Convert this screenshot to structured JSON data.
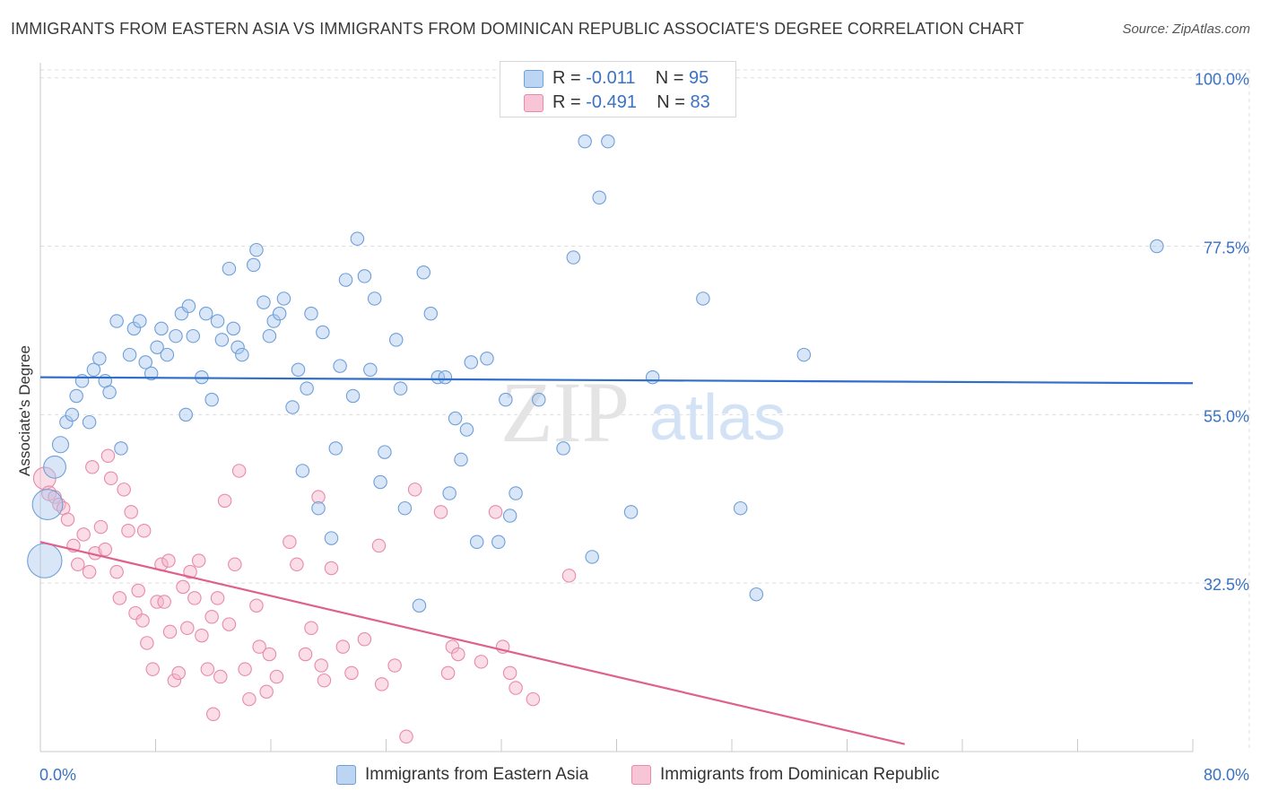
{
  "header": {
    "title": "IMMIGRANTS FROM EASTERN ASIA VS IMMIGRANTS FROM DOMINICAN REPUBLIC ASSOCIATE'S DEGREE CORRELATION CHART",
    "source": "Source: ZipAtlas.com"
  },
  "legend": {
    "row1": {
      "r_label": "R =",
      "r_value": "-0.011",
      "n_label": "N =",
      "n_value": "95"
    },
    "row2": {
      "r_label": "R =",
      "r_value": "-0.491",
      "n_label": "N =",
      "n_value": "83"
    }
  },
  "bottom_legend": {
    "series1": "Immigrants from Eastern Asia",
    "series2": "Immigrants from Dominican Republic"
  },
  "watermark": {
    "zip": "ZIP",
    "atlas": "atlas"
  },
  "colors": {
    "blue_fill": "#a9c8f0",
    "blue_stroke": "#6f9fd8",
    "blue_line": "#2f6fca",
    "pink_fill": "#f4b3c8",
    "pink_stroke": "#e88aa8",
    "pink_line": "#e0608c",
    "axis_label": "#3a72c4",
    "grid": "#dddddd"
  },
  "chart_data": {
    "type": "scatter",
    "title": "IMMIGRANTS FROM EASTERN ASIA VS IMMIGRANTS FROM DOMINICAN REPUBLIC ASSOCIATE'S DEGREE CORRELATION CHART",
    "xlabel": "",
    "ylabel": "Associate's Degree",
    "xlim": [
      0,
      80
    ],
    "ylim": [
      10,
      102
    ],
    "x_tick_labels": [
      "0.0%",
      "80.0%"
    ],
    "y_ticks": [
      32.5,
      55.0,
      77.5,
      100.0
    ],
    "y_tick_labels": [
      "32.5%",
      "55.0%",
      "77.5%",
      "100.0%"
    ],
    "grid": true,
    "legend_position": "top-center",
    "series": [
      {
        "name": "Immigrants from Eastern Asia",
        "R": -0.011,
        "N": 95,
        "trend": {
          "x": [
            0,
            80
          ],
          "y": [
            60.0,
            59.2
          ]
        },
        "points": [
          [
            0.3,
            35.5,
            1.7
          ],
          [
            0.5,
            43.0,
            1.5
          ],
          [
            1.0,
            48.0,
            1.1
          ],
          [
            1.4,
            51.0,
            1.0
          ],
          [
            1.8,
            54.0,
            0.8
          ],
          [
            2.2,
            55.0,
            0.8
          ],
          [
            2.5,
            57.5,
            0.8
          ],
          [
            2.9,
            59.5,
            0.8
          ],
          [
            3.4,
            54.0,
            0.8
          ],
          [
            3.7,
            61.0,
            0.8
          ],
          [
            4.1,
            62.5,
            0.8
          ],
          [
            4.5,
            59.5,
            0.8
          ],
          [
            4.8,
            58.0,
            0.8
          ],
          [
            5.3,
            67.5,
            0.8
          ],
          [
            5.6,
            50.5,
            0.8
          ],
          [
            6.2,
            63.0,
            0.8
          ],
          [
            6.5,
            66.5,
            0.8
          ],
          [
            6.9,
            67.5,
            0.8
          ],
          [
            7.3,
            62.0,
            0.8
          ],
          [
            7.7,
            60.5,
            0.8
          ],
          [
            8.1,
            64.0,
            0.8
          ],
          [
            8.4,
            66.5,
            0.8
          ],
          [
            8.8,
            63.0,
            0.8
          ],
          [
            9.4,
            65.5,
            0.8
          ],
          [
            9.8,
            68.5,
            0.8
          ],
          [
            10.1,
            55.0,
            0.8
          ],
          [
            10.3,
            69.5,
            0.8
          ],
          [
            10.6,
            65.5,
            0.8
          ],
          [
            11.2,
            60.0,
            0.8
          ],
          [
            11.5,
            68.5,
            0.8
          ],
          [
            11.9,
            57.0,
            0.8
          ],
          [
            12.3,
            67.5,
            0.8
          ],
          [
            12.6,
            65.0,
            0.8
          ],
          [
            13.1,
            74.5,
            0.8
          ],
          [
            13.4,
            66.5,
            0.8
          ],
          [
            13.7,
            64.0,
            0.8
          ],
          [
            14.0,
            63.0,
            0.8
          ],
          [
            14.8,
            75.0,
            0.8
          ],
          [
            15.0,
            77.0,
            0.8
          ],
          [
            15.5,
            70.0,
            0.8
          ],
          [
            15.9,
            65.5,
            0.8
          ],
          [
            16.2,
            67.5,
            0.8
          ],
          [
            16.6,
            68.5,
            0.8
          ],
          [
            16.9,
            70.5,
            0.8
          ],
          [
            17.5,
            56.0,
            0.8
          ],
          [
            17.9,
            61.0,
            0.8
          ],
          [
            18.2,
            47.5,
            0.8
          ],
          [
            18.5,
            58.5,
            0.8
          ],
          [
            18.8,
            68.5,
            0.8
          ],
          [
            19.3,
            42.5,
            0.8
          ],
          [
            19.6,
            66.0,
            0.8
          ],
          [
            20.2,
            38.5,
            0.8
          ],
          [
            20.5,
            50.5,
            0.8
          ],
          [
            20.8,
            61.5,
            0.8
          ],
          [
            21.2,
            73.0,
            0.8
          ],
          [
            21.7,
            57.5,
            0.8
          ],
          [
            22.0,
            78.5,
            0.8
          ],
          [
            22.5,
            73.5,
            0.8
          ],
          [
            22.9,
            61.0,
            0.8
          ],
          [
            23.2,
            70.5,
            0.8
          ],
          [
            23.6,
            46.0,
            0.8
          ],
          [
            23.9,
            50.0,
            0.8
          ],
          [
            24.7,
            65.0,
            0.8
          ],
          [
            25.0,
            58.5,
            0.8
          ],
          [
            25.3,
            42.5,
            0.8
          ],
          [
            26.3,
            29.5,
            0.8
          ],
          [
            26.6,
            74.0,
            0.8
          ],
          [
            27.1,
            68.5,
            0.8
          ],
          [
            27.6,
            60.0,
            0.8
          ],
          [
            28.1,
            60.0,
            0.8
          ],
          [
            28.4,
            44.5,
            0.8
          ],
          [
            28.8,
            54.5,
            0.8
          ],
          [
            29.2,
            49.0,
            0.8
          ],
          [
            29.6,
            53.0,
            0.8
          ],
          [
            29.9,
            62.0,
            0.8
          ],
          [
            30.3,
            38.0,
            0.8
          ],
          [
            31.0,
            62.5,
            0.8
          ],
          [
            31.8,
            38.0,
            0.8
          ],
          [
            32.3,
            57.0,
            0.8
          ],
          [
            32.6,
            41.5,
            0.8
          ],
          [
            33.0,
            44.5,
            0.8
          ],
          [
            34.6,
            57.0,
            0.8
          ],
          [
            36.3,
            50.5,
            0.8
          ],
          [
            37.0,
            76.0,
            0.8
          ],
          [
            37.8,
            91.5,
            0.8
          ],
          [
            38.3,
            36.0,
            0.8
          ],
          [
            38.8,
            84.0,
            0.8
          ],
          [
            39.4,
            91.5,
            0.8
          ],
          [
            41.0,
            42.0,
            0.8
          ],
          [
            42.5,
            60.0,
            0.8
          ],
          [
            46.0,
            70.5,
            0.8
          ],
          [
            48.6,
            42.5,
            0.8
          ],
          [
            49.7,
            31.0,
            0.8
          ],
          [
            53.0,
            63.0,
            0.8
          ],
          [
            77.5,
            77.5,
            0.8
          ]
        ]
      },
      {
        "name": "Immigrants from Dominican Republic",
        "R": -0.491,
        "N": 83,
        "trend": {
          "x": [
            0,
            60
          ],
          "y": [
            38.0,
            11.0
          ]
        },
        "points": [
          [
            0.3,
            46.5,
            1.1
          ],
          [
            0.6,
            44.5,
            0.9
          ],
          [
            1.0,
            44.0,
            0.8
          ],
          [
            1.3,
            43.0,
            0.8
          ],
          [
            1.6,
            42.5,
            0.8
          ],
          [
            1.9,
            41.0,
            0.8
          ],
          [
            2.3,
            37.5,
            0.8
          ],
          [
            2.6,
            35.0,
            0.8
          ],
          [
            3.0,
            39.0,
            0.8
          ],
          [
            3.4,
            34.0,
            0.8
          ],
          [
            3.6,
            48.0,
            0.8
          ],
          [
            3.8,
            36.5,
            0.8
          ],
          [
            4.2,
            40.0,
            0.8
          ],
          [
            4.5,
            37.0,
            0.8
          ],
          [
            4.7,
            49.5,
            0.8
          ],
          [
            4.9,
            46.5,
            0.8
          ],
          [
            5.3,
            34.0,
            0.8
          ],
          [
            5.5,
            30.5,
            0.8
          ],
          [
            5.8,
            45.0,
            0.8
          ],
          [
            6.1,
            39.5,
            0.8
          ],
          [
            6.3,
            42.0,
            0.8
          ],
          [
            6.6,
            28.5,
            0.8
          ],
          [
            6.8,
            31.5,
            0.8
          ],
          [
            7.2,
            39.5,
            0.8
          ],
          [
            7.4,
            24.5,
            0.8
          ],
          [
            7.8,
            21.0,
            0.8
          ],
          [
            8.1,
            30.0,
            0.8
          ],
          [
            8.4,
            35.0,
            0.8
          ],
          [
            8.6,
            30.0,
            0.8
          ],
          [
            8.9,
            35.5,
            0.8
          ],
          [
            9.3,
            19.5,
            0.8
          ],
          [
            9.6,
            20.5,
            0.8
          ],
          [
            9.9,
            32.0,
            0.8
          ],
          [
            10.2,
            26.5,
            0.8
          ],
          [
            10.4,
            34.0,
            0.8
          ],
          [
            10.7,
            30.5,
            0.8
          ],
          [
            11.0,
            35.5,
            0.8
          ],
          [
            11.2,
            25.5,
            0.8
          ],
          [
            11.6,
            21.0,
            0.8
          ],
          [
            11.9,
            28.0,
            0.8
          ],
          [
            12.3,
            30.5,
            0.8
          ],
          [
            12.5,
            20.0,
            0.8
          ],
          [
            12.8,
            43.5,
            0.8
          ],
          [
            13.1,
            27.0,
            0.8
          ],
          [
            13.5,
            35.0,
            0.8
          ],
          [
            13.8,
            47.5,
            0.8
          ],
          [
            14.2,
            21.0,
            0.8
          ],
          [
            14.5,
            17.0,
            0.8
          ],
          [
            15.0,
            29.5,
            0.8
          ],
          [
            15.2,
            24.0,
            0.8
          ],
          [
            15.9,
            23.0,
            0.8
          ],
          [
            16.4,
            20.0,
            0.8
          ],
          [
            17.3,
            38.0,
            0.8
          ],
          [
            17.8,
            35.0,
            0.8
          ],
          [
            18.4,
            23.0,
            0.8
          ],
          [
            18.8,
            26.5,
            0.8
          ],
          [
            19.3,
            44.0,
            0.8
          ],
          [
            19.7,
            19.5,
            0.8
          ],
          [
            20.2,
            34.5,
            0.8
          ],
          [
            21.0,
            24.0,
            0.8
          ],
          [
            21.6,
            20.5,
            0.8
          ],
          [
            22.5,
            25.0,
            0.8
          ],
          [
            23.7,
            19.0,
            0.8
          ],
          [
            24.6,
            21.5,
            0.8
          ],
          [
            25.4,
            12.0,
            0.8
          ],
          [
            26.0,
            45.0,
            0.8
          ],
          [
            27.8,
            42.0,
            0.8
          ],
          [
            28.3,
            20.5,
            0.8
          ],
          [
            28.6,
            24.0,
            0.8
          ],
          [
            29.0,
            23.0,
            0.8
          ],
          [
            30.6,
            22.0,
            0.8
          ],
          [
            31.6,
            42.0,
            0.8
          ],
          [
            32.1,
            24.0,
            0.8
          ],
          [
            32.6,
            20.5,
            0.8
          ],
          [
            33.0,
            18.5,
            0.8
          ],
          [
            34.2,
            17.0,
            0.8
          ],
          [
            36.7,
            33.5,
            0.8
          ],
          [
            12.0,
            15.0,
            0.8
          ],
          [
            15.7,
            18.0,
            0.8
          ],
          [
            19.5,
            21.5,
            0.8
          ],
          [
            7.1,
            27.5,
            0.8
          ],
          [
            9.0,
            26.0,
            0.8
          ],
          [
            23.5,
            37.5,
            0.8
          ]
        ]
      }
    ]
  }
}
